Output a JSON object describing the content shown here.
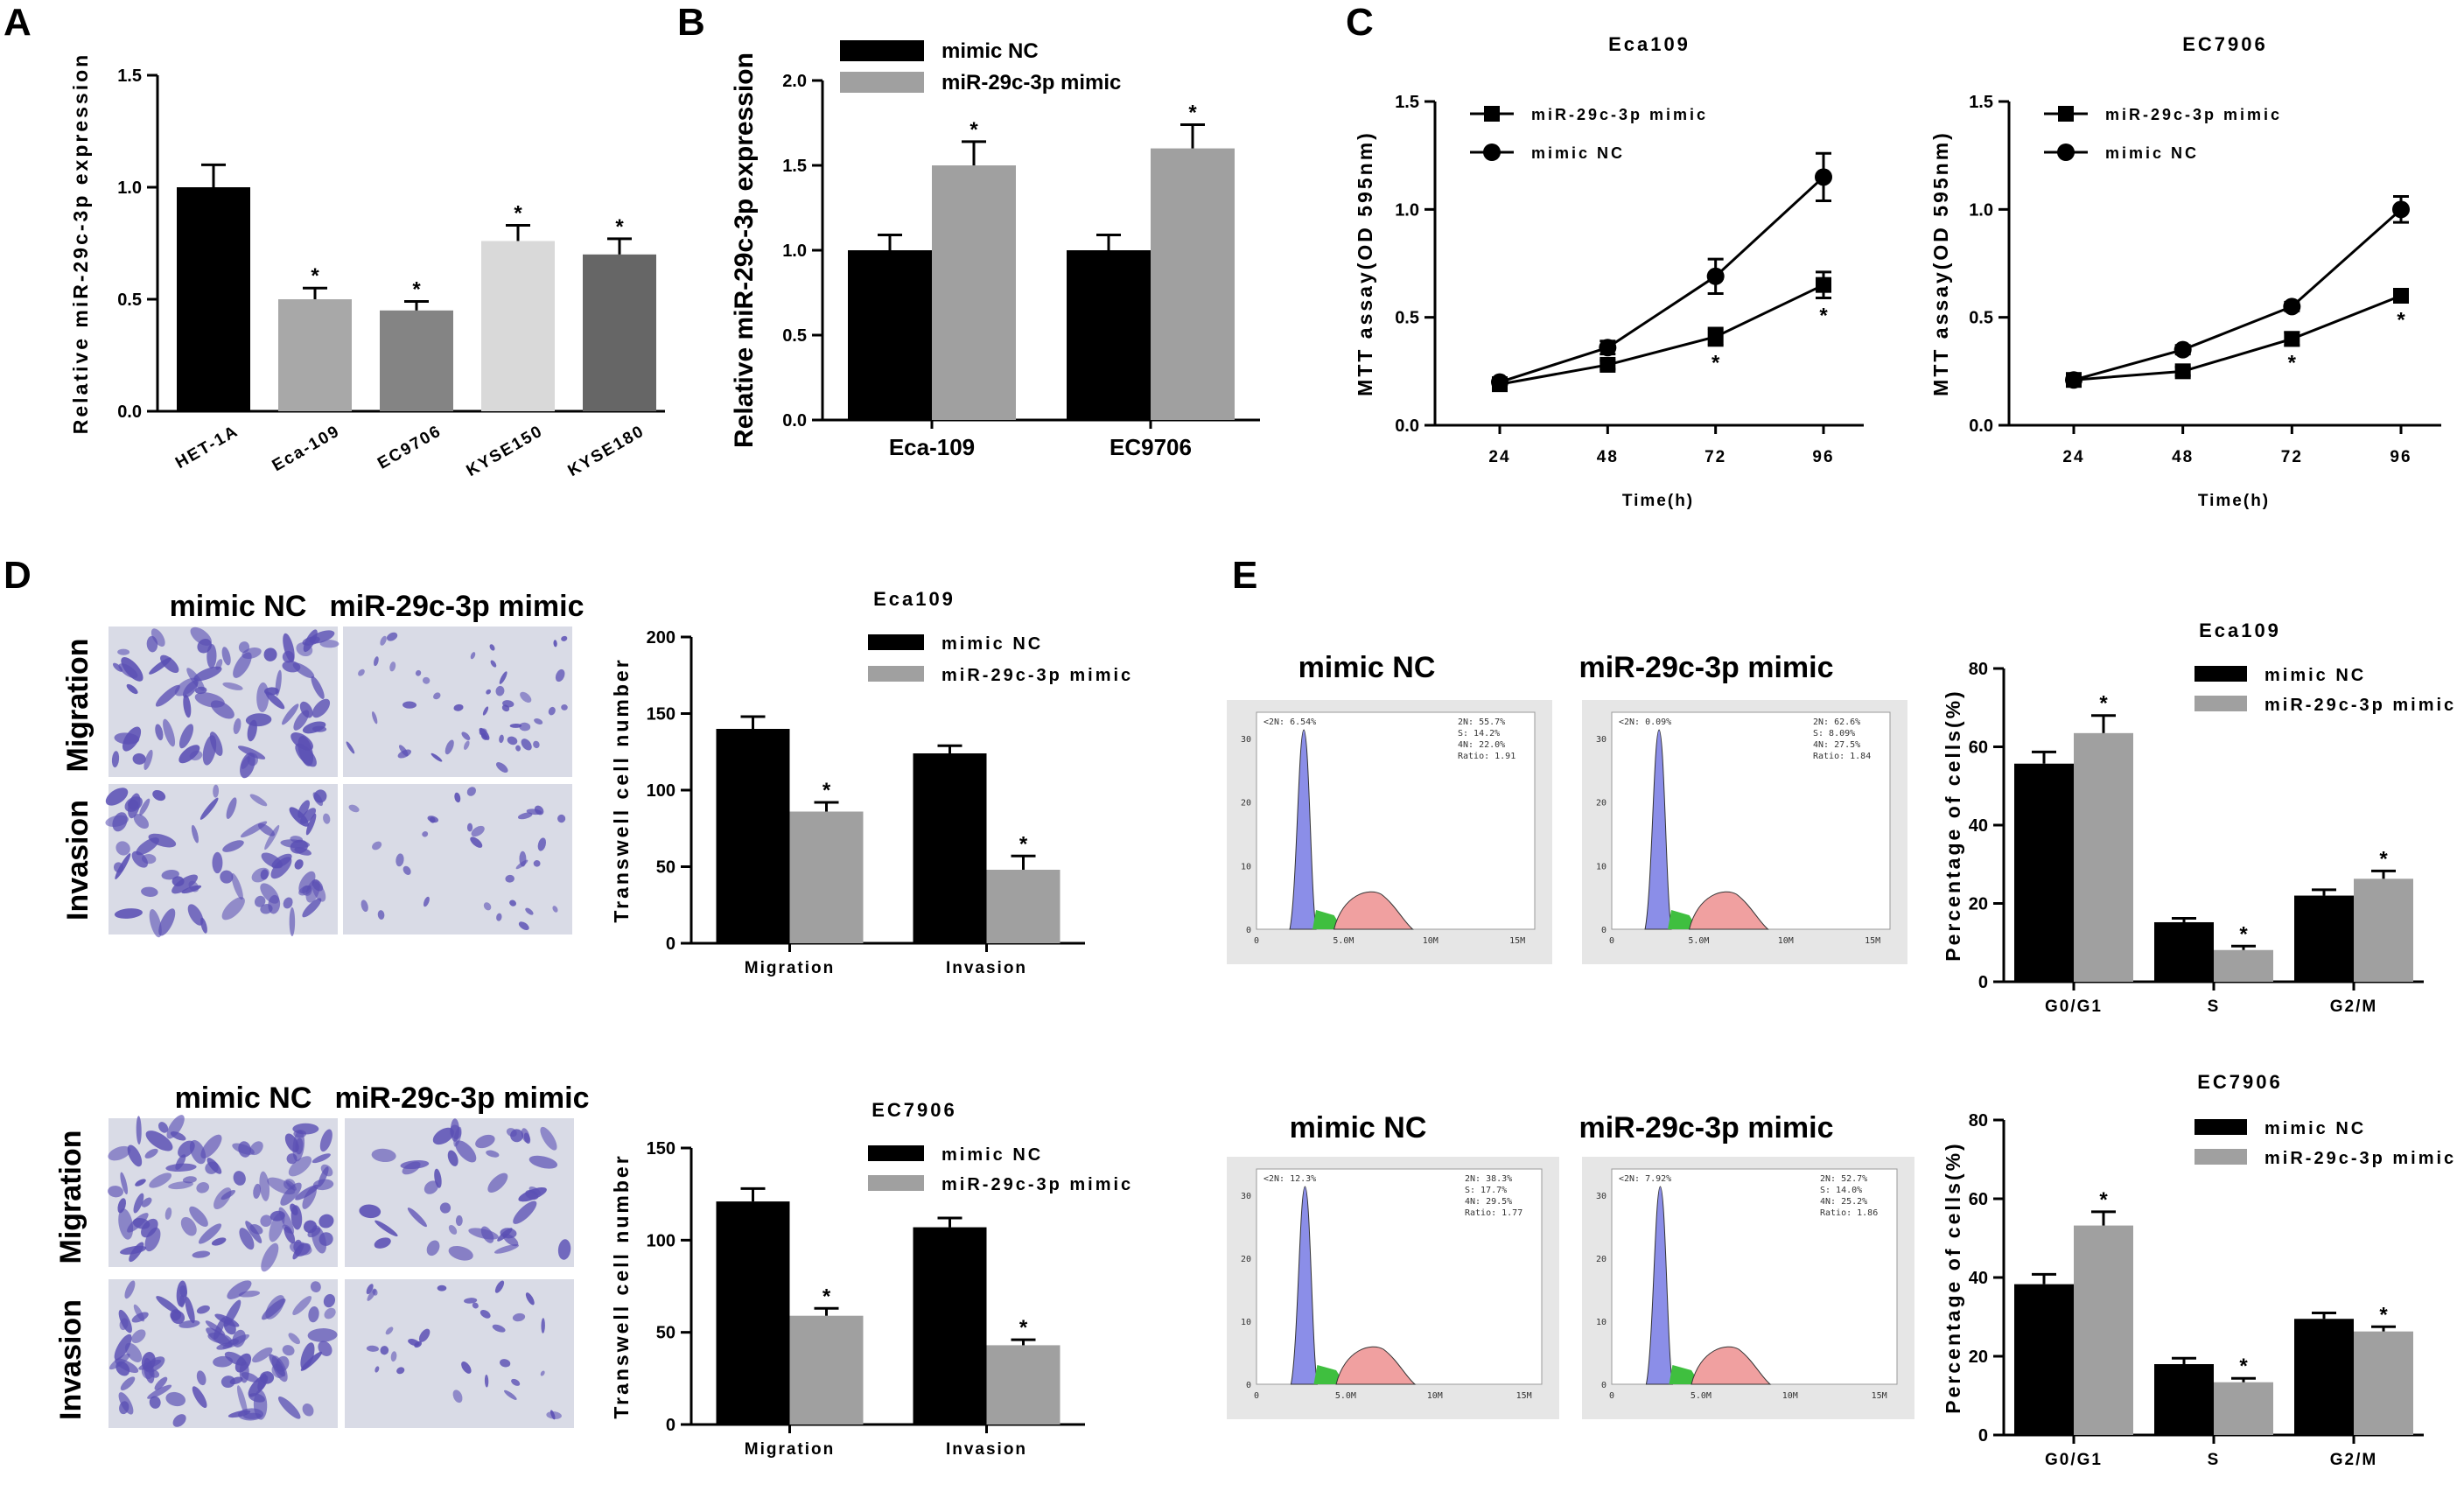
{
  "colors": {
    "black": "#000000",
    "gray": "#a0a0a0",
    "mid": "#7c7c7c",
    "light": "#d6d6d6",
    "dark": "#606060",
    "cellBg": "#d9dbe6",
    "cellStain": "#5a4fb4",
    "histBlue": "#8b8ee8",
    "histGreen": "#3fbf3f",
    "histRed": "#f0a0a0"
  },
  "panels": {
    "A": {
      "letter": "A"
    },
    "B": {
      "letter": "B"
    },
    "C": {
      "letter": "C"
    },
    "D": {
      "letter": "D"
    },
    "E": {
      "letter": "E"
    }
  },
  "chart_data": [
    {
      "id": "A",
      "type": "bar",
      "title": "",
      "ylabel": "Relative miR-29c-3p expression",
      "xlabel": "",
      "ylim": [
        0,
        1.5
      ],
      "yticks": [
        "0.0",
        "0.5",
        "1.0",
        "1.5"
      ],
      "categories": [
        "HET-1A",
        "Eca-109",
        "EC9706",
        "KYSE150",
        "KYSE180"
      ],
      "values": [
        1.0,
        0.5,
        0.45,
        0.76,
        0.7
      ],
      "errors": [
        0.1,
        0.05,
        0.04,
        0.07,
        0.07
      ],
      "bar_colors": [
        "#000000",
        "#a8a8a8",
        "#848484",
        "#d9d9d9",
        "#666666"
      ],
      "significance": [
        "",
        "*",
        "*",
        "*",
        "*"
      ]
    },
    {
      "id": "B",
      "type": "bar",
      "ylabel": "Relative miR-29c-3p expression",
      "ylim": [
        0,
        2.0
      ],
      "yticks": [
        "0.0",
        "0.5",
        "1.0",
        "1.5",
        "2.0"
      ],
      "categories": [
        "Eca-109",
        "EC9706"
      ],
      "series": [
        {
          "name": "mimic NC",
          "color": "#000000",
          "values": [
            1.0,
            1.0
          ],
          "errors": [
            0.09,
            0.09
          ],
          "significance": [
            "",
            ""
          ]
        },
        {
          "name": "miR-29c-3p mimic",
          "color": "#a0a0a0",
          "values": [
            1.5,
            1.6
          ],
          "errors": [
            0.14,
            0.14
          ],
          "significance": [
            "*",
            "*"
          ]
        }
      ]
    },
    {
      "id": "C1",
      "type": "line",
      "title": "Eca109",
      "xlabel": "Time(h)",
      "ylabel": "MTT assay(OD 595nm)",
      "ylim": [
        0,
        1.5
      ],
      "yticks": [
        "0.0",
        "0.5",
        "1.0",
        "1.5"
      ],
      "x": [
        24,
        48,
        72,
        96
      ],
      "series": [
        {
          "name": "miR-29c-3p mimic",
          "marker": "square",
          "values": [
            0.19,
            0.28,
            0.41,
            0.65
          ],
          "errors": [
            0.02,
            0.02,
            0.04,
            0.06
          ],
          "significance": [
            "",
            "",
            "*",
            "*"
          ]
        },
        {
          "name": "mimic NC",
          "marker": "circle",
          "values": [
            0.2,
            0.36,
            0.69,
            1.15
          ],
          "errors": [
            0.02,
            0.03,
            0.08,
            0.11
          ]
        }
      ]
    },
    {
      "id": "C2",
      "type": "line",
      "title": "EC7906",
      "xlabel": "Time(h)",
      "ylabel": "MTT assay(OD 595nm)",
      "ylim": [
        0,
        1.5
      ],
      "yticks": [
        "0.0",
        "0.5",
        "1.0",
        "1.5"
      ],
      "x": [
        24,
        48,
        72,
        96
      ],
      "series": [
        {
          "name": "miR-29c-3p mimic",
          "marker": "square",
          "values": [
            0.21,
            0.25,
            0.4,
            0.6
          ],
          "errors": [
            0.02,
            0.02,
            0.03,
            0.03
          ],
          "significance": [
            "",
            "",
            "*",
            "*"
          ]
        },
        {
          "name": "mimic NC",
          "marker": "circle",
          "values": [
            0.21,
            0.35,
            0.55,
            1.0
          ],
          "errors": [
            0.02,
            0.02,
            0.02,
            0.06
          ]
        }
      ]
    },
    {
      "id": "D1",
      "type": "bar",
      "title": "Eca109",
      "ylabel": "Transwell cell number",
      "ylim": [
        0,
        200
      ],
      "yticks": [
        "0",
        "50",
        "100",
        "150",
        "200"
      ],
      "categories": [
        "Migration",
        "Invasion"
      ],
      "series": [
        {
          "name": "mimic NC",
          "color": "#000000",
          "values": [
            140,
            124
          ],
          "errors": [
            8,
            5
          ],
          "significance": [
            "",
            ""
          ]
        },
        {
          "name": "miR-29c-3p mimic",
          "color": "#a0a0a0",
          "values": [
            86,
            48
          ],
          "errors": [
            6,
            9
          ],
          "significance": [
            "*",
            "*"
          ]
        }
      ]
    },
    {
      "id": "D2",
      "type": "bar",
      "title": "EC7906",
      "ylabel": "Transwell cell number",
      "ylim": [
        0,
        150
      ],
      "yticks": [
        "0",
        "50",
        "100",
        "150"
      ],
      "categories": [
        "Migration",
        "Invasion"
      ],
      "series": [
        {
          "name": "mimic NC",
          "color": "#000000",
          "values": [
            121,
            107
          ],
          "errors": [
            7,
            5
          ],
          "significance": [
            "",
            ""
          ]
        },
        {
          "name": "miR-29c-3p mimic",
          "color": "#a0a0a0",
          "values": [
            59,
            43
          ],
          "errors": [
            4,
            3
          ],
          "significance": [
            "*",
            "*"
          ]
        }
      ]
    },
    {
      "id": "E1",
      "type": "bar",
      "title": "Eca109",
      "ylabel": "Percentage of cells(%)",
      "ylim": [
        0,
        80
      ],
      "yticks": [
        "0",
        "20",
        "40",
        "60",
        "80"
      ],
      "categories": [
        "G0/G1",
        "S",
        "G2/M"
      ],
      "series": [
        {
          "name": "mimic NC",
          "color": "#000000",
          "values": [
            55.7,
            15.2,
            22.0
          ],
          "errors": [
            3,
            1,
            1.5
          ],
          "significance": [
            "",
            "",
            ""
          ]
        },
        {
          "name": "miR-29c-3p mimic",
          "color": "#a0a0a0",
          "values": [
            63.5,
            8.1,
            26.3
          ],
          "errors": [
            4.5,
            1,
            2
          ],
          "significance": [
            "*",
            "*",
            "*"
          ]
        }
      ]
    },
    {
      "id": "E2",
      "type": "bar",
      "title": "EC7906",
      "ylabel": "Percentage of cells(%)",
      "ylim": [
        0,
        80
      ],
      "yticks": [
        "0",
        "20",
        "40",
        "60",
        "80"
      ],
      "categories": [
        "G0/G1",
        "S",
        "G2/M"
      ],
      "series": [
        {
          "name": "mimic NC",
          "color": "#000000",
          "values": [
            38.3,
            18.0,
            29.5
          ],
          "errors": [
            2.5,
            1.5,
            1.5
          ],
          "significance": [
            "",
            "",
            ""
          ]
        },
        {
          "name": "miR-29c-3p mimic",
          "color": "#a0a0a0",
          "values": [
            53.2,
            13.4,
            26.3
          ],
          "errors": [
            3.5,
            1,
            1.2
          ],
          "significance": [
            "*",
            "*",
            "*"
          ]
        }
      ]
    }
  ],
  "images_D": {
    "col1": "mimic NC",
    "col2": "miR-29c-3p mimic",
    "row1": "Migration",
    "row2": "Invasion"
  },
  "images_E": {
    "col1": "mimic NC",
    "col2": "miR-29c-3p mimic",
    "hist": [
      {
        "dip": "<2N: 6.54%",
        "stats": [
          "2N: 55.7%",
          "S: 14.2%",
          "4N: 22.0%",
          "Ratio: 1.91"
        ],
        "axis": [
          "0",
          "5.0M",
          "10M",
          "15M"
        ],
        "yaxis": [
          "0",
          "10",
          "20",
          "30"
        ]
      },
      {
        "dip": "<2N: 0.09%",
        "stats": [
          "2N: 62.6%",
          "S: 8.09%",
          "4N: 27.5%",
          "Ratio: 1.84"
        ],
        "axis": [
          "0",
          "5.0M",
          "10M",
          "15M"
        ],
        "yaxis": [
          "0",
          "10",
          "20",
          "30"
        ]
      },
      {
        "dip": "<2N: 12.3%",
        "stats": [
          "2N: 38.3%",
          "S: 17.7%",
          "4N: 29.5%",
          "Ratio: 1.77"
        ],
        "axis": [
          "0",
          "5.0M",
          "10M",
          "15M"
        ],
        "yaxis": [
          "0",
          "10",
          "20",
          "30"
        ]
      },
      {
        "dip": "<2N: 7.92%",
        "stats": [
          "2N: 52.7%",
          "S: 14.0%",
          "4N: 25.2%",
          "Ratio: 1.86"
        ],
        "axis": [
          "0",
          "5.0M",
          "10M",
          "15M"
        ],
        "yaxis": [
          "0",
          "10",
          "20",
          "30"
        ]
      }
    ]
  }
}
